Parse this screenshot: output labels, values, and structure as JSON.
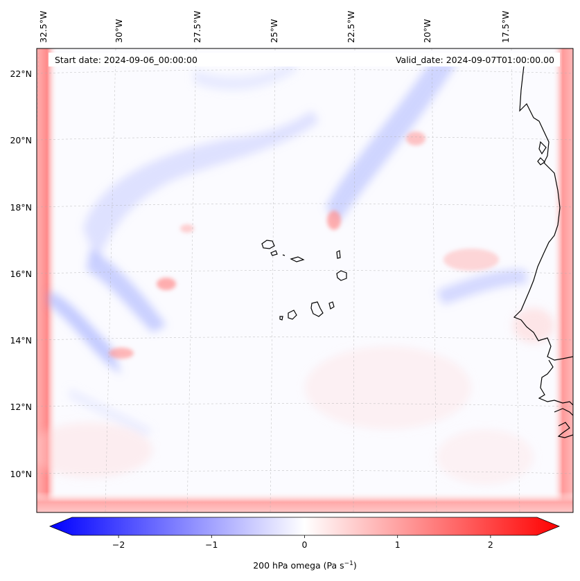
{
  "map": {
    "header": {
      "start_date": "Start date: 2024-09-06_00:00:00",
      "valid_date": "Valid_date: 2024-09-07T01:00:00.00"
    },
    "lon_labels": [
      "32.5°W",
      "30°W",
      "27.5°W",
      "25°W",
      "22.5°W",
      "20°W",
      "17.5°W"
    ],
    "lat_labels": [
      "22°N",
      "20°N",
      "18°N",
      "16°N",
      "14°N",
      "12°N",
      "10°N"
    ],
    "colors": {
      "negative": "#0000ff",
      "zero": "#ffffff",
      "positive": "#ff0000",
      "coastline": "#000000",
      "gridline": "#b0b0b0"
    }
  },
  "colorbar": {
    "ticks": [
      -2,
      -1,
      0,
      1,
      2
    ],
    "tick_labels": [
      "−2",
      "−1",
      "0",
      "1",
      "2"
    ],
    "range": [
      -2.5,
      2.5
    ],
    "label_main": "200 hPa omega (Pa s",
    "label_sup": "−1",
    "label_end": ")"
  }
}
